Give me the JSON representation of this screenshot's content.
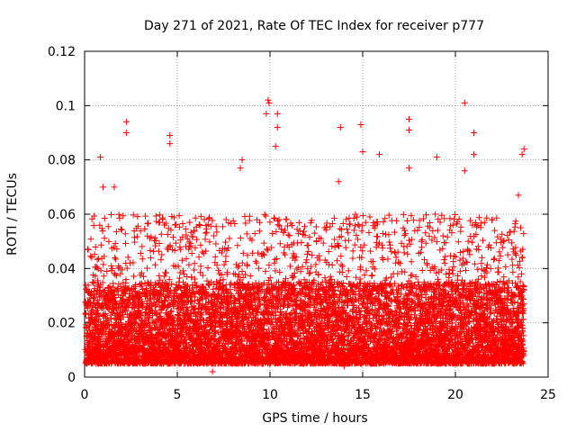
{
  "chart_data": {
    "type": "scatter",
    "title": "Day 271 of 2021, Rate Of TEC Index for receiver p777",
    "xlabel": "GPS time / hours",
    "ylabel": "ROTI / TECUs",
    "xlim": [
      0,
      25
    ],
    "ylim": [
      0,
      0.12
    ],
    "x_ticks": [
      0,
      5,
      10,
      15,
      20,
      25
    ],
    "x_tick_labels": [
      "0",
      "5",
      "10",
      "15",
      "20",
      "25"
    ],
    "y_ticks": [
      0,
      0.02,
      0.04,
      0.06,
      0.08,
      0.1,
      0.12
    ],
    "y_tick_labels": [
      "0",
      "0.02",
      "0.04",
      "0.06",
      "0.08",
      "0.1",
      "0.12"
    ],
    "grid": true,
    "marker": "plus",
    "color": "#ff0000",
    "series": [
      {
        "name": "ROTI",
        "notable_points": [
          {
            "x": 0.85,
            "y": 0.081
          },
          {
            "x": 1.0,
            "y": 0.07
          },
          {
            "x": 1.6,
            "y": 0.07
          },
          {
            "x": 2.25,
            "y": 0.094
          },
          {
            "x": 2.25,
            "y": 0.09
          },
          {
            "x": 4.6,
            "y": 0.089
          },
          {
            "x": 4.6,
            "y": 0.086
          },
          {
            "x": 8.5,
            "y": 0.08
          },
          {
            "x": 8.4,
            "y": 0.077
          },
          {
            "x": 9.9,
            "y": 0.102
          },
          {
            "x": 9.95,
            "y": 0.101
          },
          {
            "x": 9.8,
            "y": 0.097
          },
          {
            "x": 10.4,
            "y": 0.097
          },
          {
            "x": 10.4,
            "y": 0.092
          },
          {
            "x": 10.3,
            "y": 0.085
          },
          {
            "x": 13.8,
            "y": 0.092
          },
          {
            "x": 13.7,
            "y": 0.072
          },
          {
            "x": 14.9,
            "y": 0.093
          },
          {
            "x": 15.0,
            "y": 0.083
          },
          {
            "x": 15.9,
            "y": 0.082
          },
          {
            "x": 17.5,
            "y": 0.095
          },
          {
            "x": 17.5,
            "y": 0.091
          },
          {
            "x": 17.5,
            "y": 0.077
          },
          {
            "x": 19.0,
            "y": 0.081
          },
          {
            "x": 20.5,
            "y": 0.101
          },
          {
            "x": 20.5,
            "y": 0.076
          },
          {
            "x": 21.0,
            "y": 0.09
          },
          {
            "x": 21.0,
            "y": 0.082
          },
          {
            "x": 23.4,
            "y": 0.067
          },
          {
            "x": 23.7,
            "y": 0.084
          },
          {
            "x": 23.6,
            "y": 0.082
          },
          {
            "x": 6.9,
            "y": 0.002
          },
          {
            "x": 14.0,
            "y": 0.004
          }
        ],
        "envelope": {
          "x_range": [
            0,
            23.7
          ],
          "dense_band_y": [
            0.005,
            0.035
          ],
          "typical_peak_y": 0.06
        }
      }
    ]
  }
}
